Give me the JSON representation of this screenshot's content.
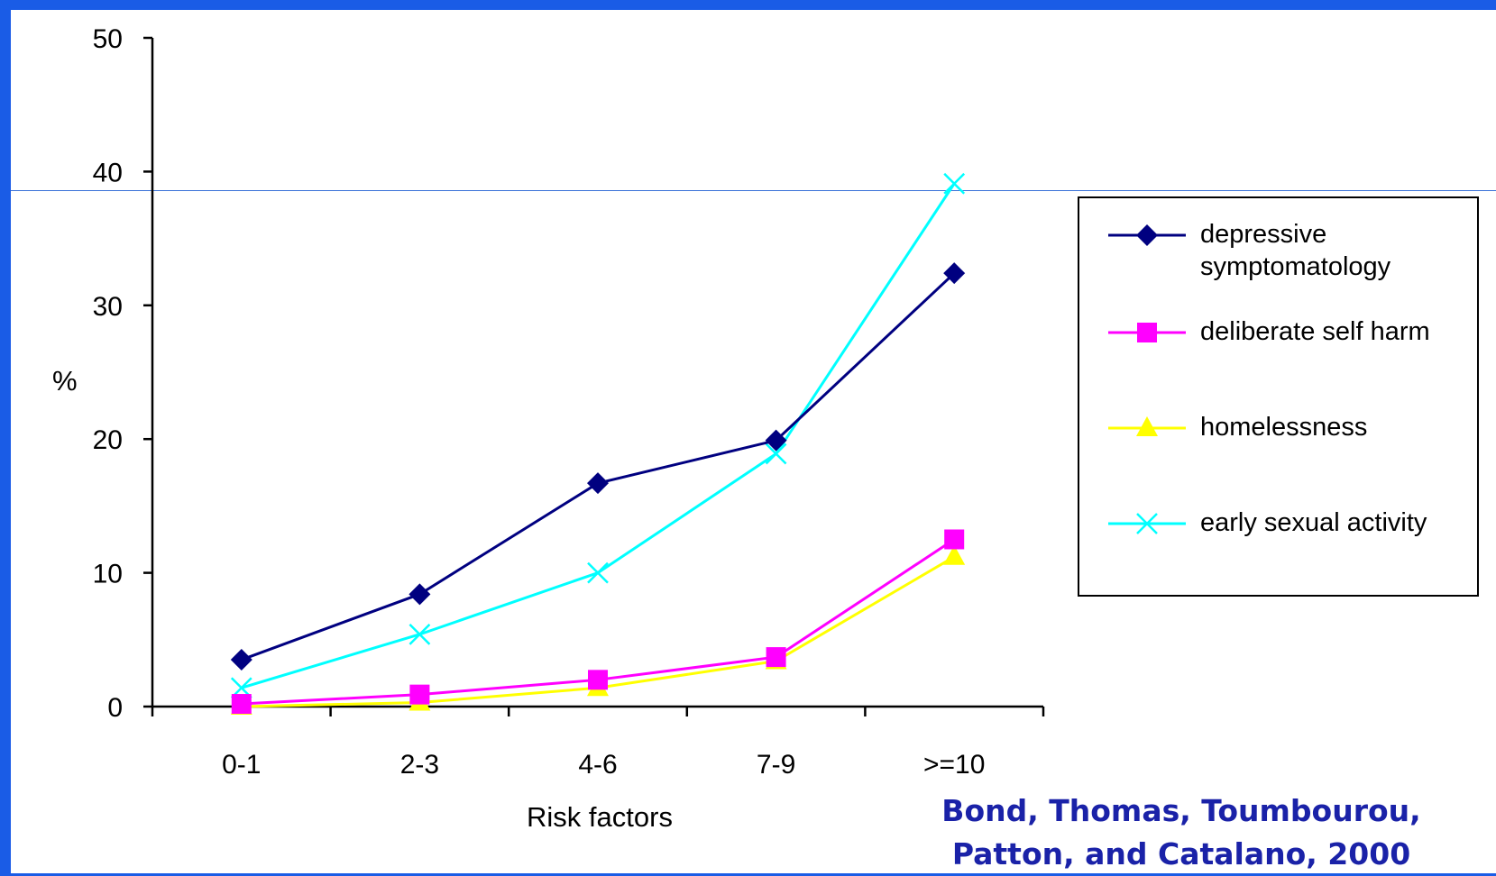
{
  "chart_data": {
    "type": "line",
    "title": "",
    "xlabel": "Risk factors",
    "ylabel": "%",
    "categories": [
      "0-1",
      "2-3",
      "4-6",
      "7-9",
      ">=10"
    ],
    "ylim": [
      0,
      50
    ],
    "yticks": [
      0,
      10,
      20,
      30,
      40,
      50
    ],
    "grid": false,
    "legend_position": "right",
    "series": [
      {
        "name": "depressive symptomatology",
        "values": [
          3.5,
          8.4,
          16.7,
          19.9,
          32.4
        ],
        "color": "#000080",
        "marker": "diamond"
      },
      {
        "name": "deliberate self harm",
        "values": [
          0.2,
          0.9,
          2.0,
          3.7,
          12.5
        ],
        "color": "#ff00ff",
        "marker": "square"
      },
      {
        "name": "homelessness",
        "values": [
          0.0,
          0.3,
          1.4,
          3.4,
          11.2
        ],
        "color": "#ffff00",
        "marker": "triangle"
      },
      {
        "name": "early sexual activity",
        "values": [
          1.4,
          5.4,
          10.0,
          18.9,
          39.1
        ],
        "color": "#00ffff",
        "marker": "x"
      }
    ]
  },
  "legend": {
    "items": [
      {
        "label": "depressive symptomatology"
      },
      {
        "label": "deliberate self harm"
      },
      {
        "label": "homelessness"
      },
      {
        "label": "early sexual activity"
      }
    ]
  },
  "citation": {
    "line1": "Bond, Thomas,  Toumbourou,",
    "line2": "Patton, and Catalano, 2000"
  }
}
